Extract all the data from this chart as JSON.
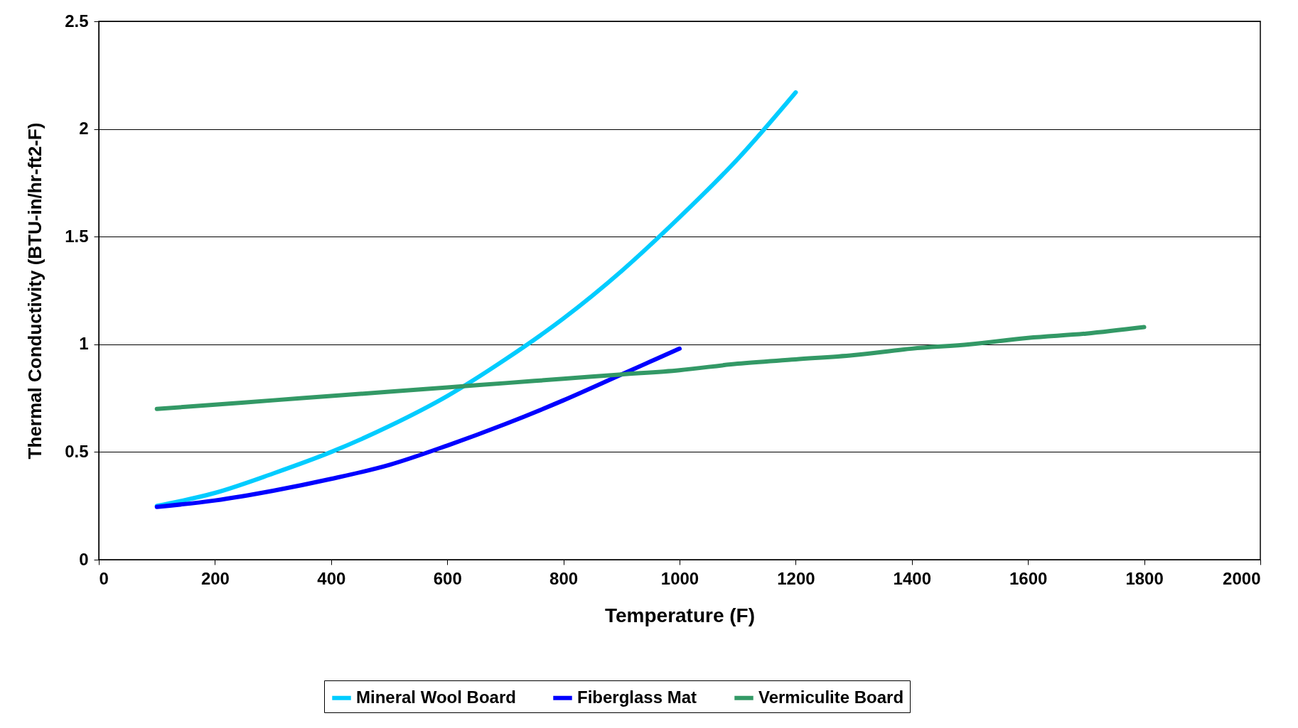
{
  "chart_data": {
    "type": "line",
    "xlabel": "Temperature (F)",
    "ylabel": "Thermal Conductivity (BTU-in/hr-ft2-F)",
    "xlim": [
      0,
      2000
    ],
    "xticks": [
      0,
      200,
      400,
      600,
      800,
      1000,
      1200,
      1400,
      1600,
      1800,
      2000
    ],
    "ylim": [
      0,
      2.5
    ],
    "yticks": [
      0,
      0.5,
      1,
      1.5,
      2,
      2.5
    ],
    "grid": "y",
    "legend": "bottom",
    "marker": "none",
    "line_style": "solid",
    "series": [
      {
        "name": "Mineral Wool Board",
        "color": "#00ccff",
        "x": [
          100,
          200,
          300,
          400,
          500,
          600,
          700,
          800,
          900,
          1000,
          1100,
          1200
        ],
        "values": [
          0.25,
          0.31,
          0.4,
          0.5,
          0.62,
          0.76,
          0.93,
          1.12,
          1.34,
          1.59,
          1.86,
          2.17
        ]
      },
      {
        "name": "Fiberglass Mat",
        "color": "#0000ff",
        "x": [
          100,
          200,
          300,
          400,
          500,
          600,
          700,
          800,
          900,
          1000
        ],
        "values": [
          0.245,
          0.275,
          0.32,
          0.375,
          0.44,
          0.53,
          0.63,
          0.74,
          0.86,
          0.98
        ]
      },
      {
        "name": "Vermiculite Board",
        "color": "#339966",
        "x": [
          100,
          200,
          300,
          400,
          500,
          600,
          700,
          800,
          900,
          1000,
          1100,
          1200,
          1300,
          1400,
          1500,
          1600,
          1700,
          1800
        ],
        "values": [
          0.7,
          0.72,
          0.74,
          0.76,
          0.78,
          0.8,
          0.82,
          0.84,
          0.86,
          0.88,
          0.91,
          0.93,
          0.95,
          0.98,
          1.0,
          1.03,
          1.05,
          1.08
        ]
      }
    ]
  }
}
